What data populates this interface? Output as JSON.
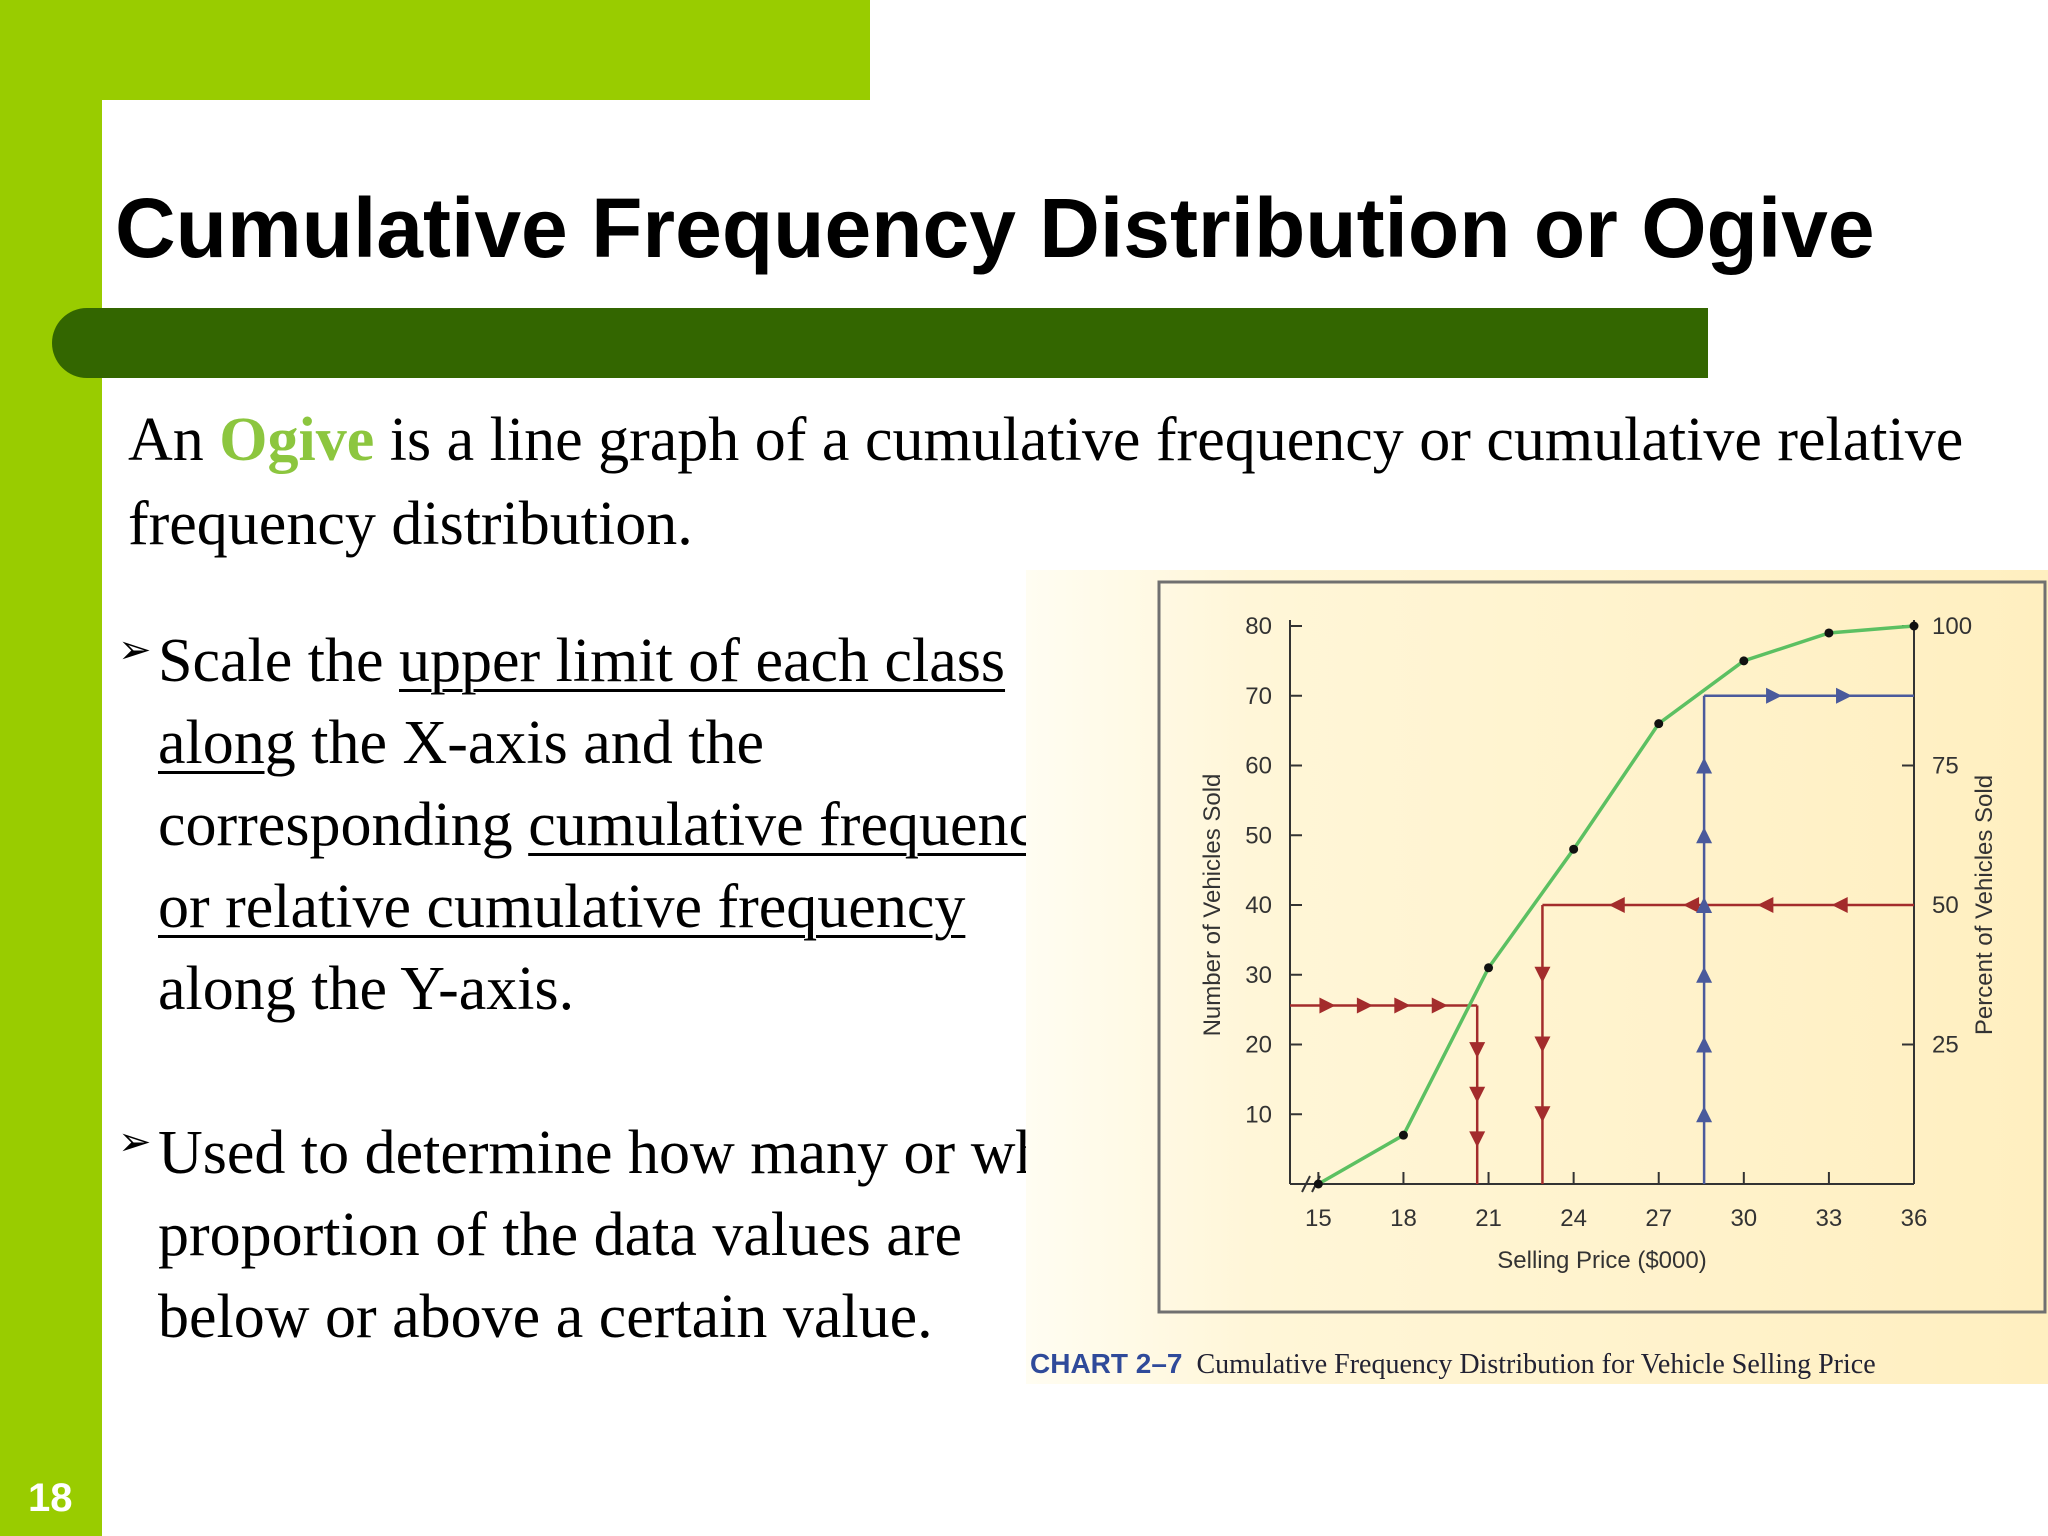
{
  "slide": {
    "number": "18",
    "title": "Cumulative Frequency Distribution or Ogive",
    "intro": {
      "prefix": "An ",
      "keyword": "Ogive",
      "rest": " is a line graph of a cumulative frequency or cumulative relative frequency distribution."
    },
    "bullets": [
      {
        "arrow": "➢",
        "parts": [
          {
            "text": "Scale the ",
            "u": false
          },
          {
            "text": "upper limit of each class along",
            "u": true
          },
          {
            "text": " the X-axis and the corresponding ",
            "u": false
          },
          {
            "text": "cumulative frequencies or relative cumulative frequency ",
            "u": true
          },
          {
            "text": "along the Y-axis.",
            "u": false
          }
        ]
      },
      {
        "arrow": "➢",
        "parts": [
          {
            "text": "Used to determine how many or what proportion of the data values are below or above a certain value.",
            "u": false
          }
        ]
      }
    ],
    "caption": {
      "label": "CHART 2–7",
      "text": "Cumulative Frequency Distribution for Vehicle Selling Price"
    }
  },
  "colors": {
    "lime": "#99cc00",
    "dark_green": "#336600",
    "keyword": "#8cc63f",
    "ogive_line": "#5cc062",
    "red_arrow": "#a32c2c",
    "blue_arrow": "#4a5a9c"
  },
  "chart_data": {
    "type": "line",
    "xlabel": "Selling Price ($000)",
    "ylabel": "Number of Vehicles Sold",
    "y2label": "Percent of Vehicles Sold",
    "x_ticks": [
      15,
      18,
      21,
      24,
      27,
      30,
      33,
      36
    ],
    "y_ticks": [
      10,
      20,
      30,
      40,
      50,
      60,
      70,
      80
    ],
    "y2_ticks": [
      25,
      50,
      75,
      100
    ],
    "xlim": [
      14,
      36
    ],
    "ylim": [
      0,
      80
    ],
    "y2lim": [
      0,
      100
    ],
    "axis_break": true,
    "grid": false,
    "series": [
      {
        "x": [
          15,
          18,
          21,
          24,
          27,
          30,
          33,
          36
        ],
        "y": [
          0,
          7,
          31,
          48,
          66,
          75,
          79,
          80
        ]
      }
    ],
    "reading_lines": [
      {
        "color": "red",
        "horizontal_at_y": 25.6,
        "from_x": 14,
        "to_x": 20.6,
        "drop_at_x": 20.6
      },
      {
        "color": "red",
        "horizontal_at_y": 40,
        "from_x": 36,
        "to_x": 22.9,
        "drop_at_x": 22.9
      },
      {
        "color": "blue",
        "vertical_at_x": 28.6,
        "to_y": 70,
        "horizontal_to_x": 36
      }
    ]
  }
}
